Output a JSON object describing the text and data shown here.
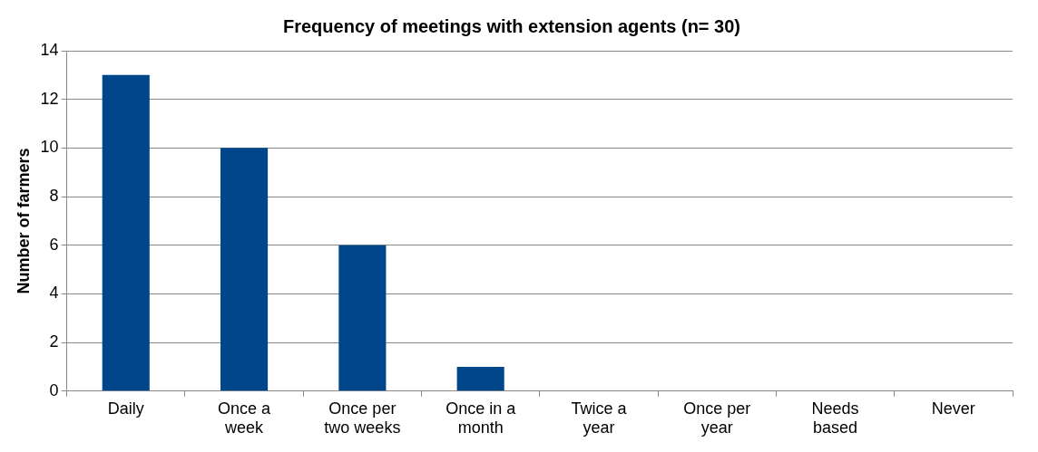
{
  "chart_data": {
    "type": "bar",
    "title": "Frequency of meetings with extension agents (n= 30)",
    "ylabel": "Number of farmers",
    "categories": [
      "Daily",
      "Once a week",
      "Once per two weeks",
      "Once in a month",
      "Twice a year",
      "Once per year",
      "Needs based",
      "Never"
    ],
    "values": [
      13,
      10,
      6,
      1,
      0,
      0,
      0,
      0
    ],
    "color": "#00468b",
    "ylim": [
      0,
      14
    ],
    "yticks": [
      0,
      2,
      4,
      6,
      8,
      10,
      12,
      14
    ],
    "grid": "y",
    "legend": false
  }
}
